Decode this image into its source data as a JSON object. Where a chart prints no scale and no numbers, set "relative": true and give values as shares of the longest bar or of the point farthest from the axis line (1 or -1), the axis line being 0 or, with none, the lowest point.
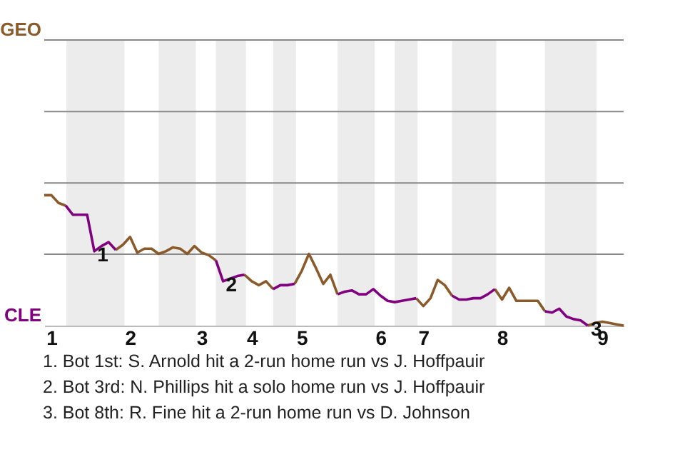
{
  "chart_data": {
    "type": "line",
    "relative": true,
    "categories": [
      null,
      "1",
      null,
      null,
      null,
      null,
      null,
      null,
      null,
      null,
      null,
      null,
      "2",
      null,
      null,
      null,
      null,
      null,
      null,
      null,
      null,
      null,
      "3",
      null,
      null,
      null,
      null,
      null,
      null,
      "4",
      null,
      null,
      null,
      null,
      null,
      null,
      "5",
      null,
      null,
      null,
      null,
      null,
      null,
      null,
      null,
      null,
      null,
      "6",
      null,
      null,
      null,
      null,
      null,
      "7",
      null,
      null,
      null,
      null,
      null,
      null,
      null,
      null,
      null,
      null,
      "8",
      null,
      null,
      null,
      null,
      null,
      null,
      null,
      null,
      null,
      null,
      null,
      null,
      null,
      "9",
      null,
      null,
      null
    ],
    "series": [
      {
        "color": "#8b5a2b",
        "values": [
          1,
          1,
          0.94,
          0.92,
          null,
          null,
          null,
          null,
          null,
          null,
          0.58,
          0.62,
          0.68,
          0.56,
          0.59,
          0.59,
          0.55,
          0.57,
          0.6,
          0.59,
          0.55,
          0.61,
          0.56,
          0.54,
          0.5,
          null,
          null,
          null,
          0.39,
          0.34,
          0.31,
          0.34,
          0.28,
          null,
          null,
          0.32,
          0.42,
          0.55,
          0.44,
          0.32,
          0.39,
          0.24,
          null,
          null,
          null,
          null,
          null,
          null,
          null,
          null,
          null,
          null,
          0.21,
          0.15,
          0.21,
          0.35,
          0.31,
          0.23,
          null,
          null,
          null,
          null,
          null,
          0.28,
          0.2,
          0.29,
          0.19,
          0.19,
          0.19,
          0.19,
          0.11,
          null,
          null,
          null,
          null,
          null,
          0,
          0.02,
          0.03,
          0.02,
          0.01,
          0
        ]
      },
      {
        "color": "#800080",
        "values": [
          null,
          null,
          null,
          0.92,
          0.85,
          0.85,
          0.85,
          0.57,
          0.61,
          0.64,
          0.58,
          null,
          null,
          null,
          null,
          null,
          null,
          null,
          null,
          null,
          null,
          null,
          null,
          null,
          0.5,
          0.34,
          0.36,
          0.38,
          0.39,
          null,
          null,
          null,
          0.28,
          0.31,
          0.31,
          0.32,
          null,
          null,
          null,
          null,
          null,
          0.24,
          0.26,
          0.27,
          0.24,
          0.24,
          0.28,
          0.23,
          0.19,
          0.18,
          0.19,
          0.2,
          0.21,
          null,
          null,
          null,
          null,
          0.23,
          0.2,
          0.2,
          0.21,
          0.21,
          0.24,
          0.28,
          null,
          null,
          null,
          null,
          null,
          null,
          0.11,
          0.1,
          0.13,
          0.07,
          0.05,
          0.04,
          0,
          null,
          null,
          null,
          null,
          null
        ]
      }
    ],
    "ref_lines": [
      {
        "axis": "y",
        "value": 2.19,
        "color": "#888888"
      },
      {
        "axis": "y",
        "value": 1.641,
        "color": "#888888"
      },
      {
        "axis": "y",
        "value": 1.094,
        "color": "#888888"
      },
      {
        "axis": "y",
        "value": 0.547,
        "color": "#888888"
      }
    ],
    "annotations": [
      "GEO",
      "CLE",
      {
        "text": "1",
        "y": 0.57
      },
      {
        "text": "2",
        "y": 0.34
      },
      {
        "text": "3",
        "y": 0
      },
      "1. Bot 1st: S. Arnold hit a 2-run home run vs J. Hoffpauir",
      "2. Bot 3rd: N. Phillips hit a solo home run vs J. Hoffpauir",
      "3. Bot 8th: R. Fine hit a 2-run home run vs D. Johnson"
    ]
  }
}
